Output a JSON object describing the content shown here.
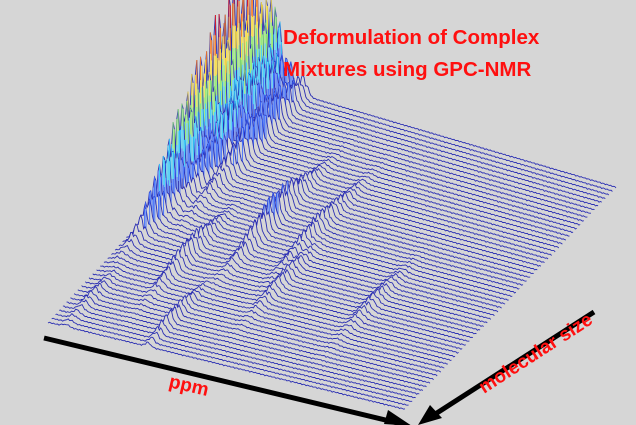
{
  "chart_data": {
    "type": "waterfall-3d",
    "title_line1": "Deformulation of Complex",
    "title_line2": "Mixtures using GPC-NMR",
    "xlabel": "ppm",
    "zlabel": "molecular size",
    "trace_color": "#2b2fb3",
    "background_color": "#d6d6d6",
    "colormap": [
      "#3b6cff",
      "#35d0ff",
      "#8ef06a",
      "#ffe23a",
      "#ff7a1a",
      "#e51c1c"
    ],
    "trace_count": 60
  }
}
